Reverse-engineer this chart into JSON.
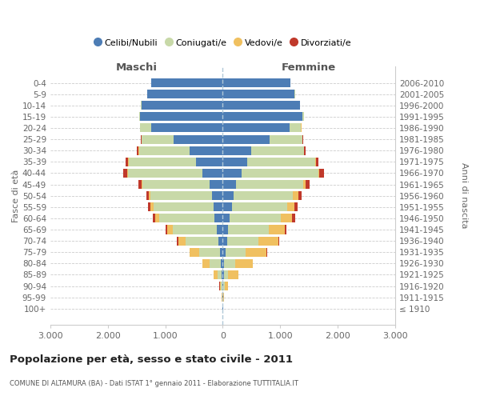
{
  "age_groups": [
    "100+",
    "95-99",
    "90-94",
    "85-89",
    "80-84",
    "75-79",
    "70-74",
    "65-69",
    "60-64",
    "55-59",
    "50-54",
    "45-49",
    "40-44",
    "35-39",
    "30-34",
    "25-29",
    "20-24",
    "15-19",
    "10-14",
    "5-9",
    "0-4"
  ],
  "birth_years": [
    "≤ 1910",
    "1911-1915",
    "1916-1920",
    "1921-1925",
    "1926-1930",
    "1931-1935",
    "1936-1940",
    "1941-1945",
    "1946-1950",
    "1951-1955",
    "1956-1960",
    "1961-1965",
    "1966-1970",
    "1971-1975",
    "1976-1980",
    "1981-1985",
    "1986-1990",
    "1991-1995",
    "1996-2000",
    "2001-2005",
    "2006-2010"
  ],
  "maschi": {
    "celibi": [
      2,
      3,
      8,
      18,
      28,
      45,
      80,
      110,
      140,
      165,
      185,
      225,
      360,
      470,
      570,
      860,
      1240,
      1440,
      1415,
      1310,
      1240
    ],
    "coniugati": [
      4,
      8,
      28,
      75,
      195,
      370,
      570,
      760,
      960,
      1040,
      1070,
      1170,
      1290,
      1170,
      890,
      555,
      195,
      18,
      4,
      4,
      2
    ],
    "vedovi": [
      2,
      5,
      18,
      65,
      125,
      155,
      125,
      95,
      75,
      48,
      28,
      13,
      9,
      4,
      2,
      1,
      1,
      0,
      0,
      0,
      0
    ],
    "divorziati": [
      0,
      0,
      2,
      4,
      7,
      9,
      18,
      28,
      38,
      43,
      48,
      58,
      68,
      48,
      28,
      9,
      4,
      2,
      0,
      0,
      0
    ]
  },
  "femmine": {
    "nubili": [
      2,
      4,
      9,
      18,
      28,
      45,
      75,
      95,
      125,
      155,
      185,
      225,
      330,
      420,
      500,
      810,
      1160,
      1390,
      1340,
      1250,
      1180
    ],
    "coniugate": [
      2,
      8,
      28,
      75,
      195,
      350,
      540,
      710,
      890,
      970,
      1040,
      1170,
      1330,
      1190,
      910,
      570,
      205,
      18,
      4,
      4,
      2
    ],
    "vedove": [
      4,
      14,
      58,
      175,
      295,
      370,
      350,
      270,
      195,
      125,
      85,
      48,
      23,
      9,
      4,
      2,
      1,
      1,
      0,
      0,
      0
    ],
    "divorziate": [
      0,
      0,
      2,
      4,
      7,
      13,
      18,
      33,
      52,
      58,
      62,
      68,
      78,
      52,
      33,
      13,
      7,
      2,
      0,
      0,
      0
    ]
  },
  "color_celibi": "#4d7db5",
  "color_coniugati": "#c8d9a8",
  "color_vedovi": "#f0c060",
  "color_divorziati": "#c0392b",
  "title": "Popolazione per età, sesso e stato civile - 2011",
  "subtitle": "COMUNE DI ALTAMURA (BA) - Dati ISTAT 1° gennaio 2011 - Elaborazione TUTTITALIA.IT",
  "xlabel_maschi": "Maschi",
  "xlabel_femmine": "Femmine",
  "ylabel_left": "Fasce di età",
  "ylabel_right": "Anni di nascita",
  "xlim": 3000
}
